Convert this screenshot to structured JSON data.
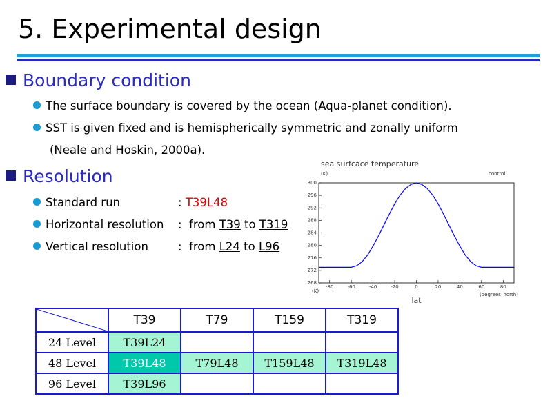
{
  "header": {
    "title": "5. Experimental design"
  },
  "boundary": {
    "heading": "Boundary condition",
    "items": [
      "The surface boundary is covered by the ocean (Aqua-planet condition).",
      "SST is given fixed and is hemispherically symmetric and zonally uniform"
    ],
    "continuation": "(Neale and Hoskin, 2000a)."
  },
  "resolution": {
    "heading": "Resolution",
    "items": [
      {
        "label": "Standard run",
        "parts": [
          {
            "text": ": "
          },
          {
            "text": "T39L48",
            "color": "#e00000"
          }
        ]
      },
      {
        "label": "Horizontal resolution",
        "parts": [
          {
            "text": ":  from "
          },
          {
            "text": "T39",
            "underline": true
          },
          {
            "text": " to "
          },
          {
            "text": "T319",
            "underline": true
          }
        ]
      },
      {
        "label": "Vertical resolution",
        "parts": [
          {
            "text": ":  from "
          },
          {
            "text": "L24",
            "underline": true
          },
          {
            "text": " to "
          },
          {
            "text": "L96",
            "underline": true
          }
        ]
      }
    ]
  },
  "chart_data": {
    "type": "line",
    "title": "sea surfcace temperature",
    "y_unit": "(K)",
    "x_unit_left": "(K)",
    "x_unit_right": "(degrees_north)",
    "xlabel": "lat",
    "annotation": "control",
    "x": [
      -90,
      -80,
      -70,
      -60,
      -55,
      -50,
      -45,
      -40,
      -35,
      -30,
      -25,
      -20,
      -15,
      -10,
      -5,
      0,
      5,
      10,
      15,
      20,
      25,
      30,
      35,
      40,
      45,
      50,
      55,
      60,
      70,
      80,
      90
    ],
    "series": [
      {
        "name": "control",
        "color": "#0000ff",
        "values": [
          273,
          273,
          273,
          273,
          273.5,
          274.8,
          276.9,
          279.8,
          283,
          286.5,
          290,
          293.3,
          296.1,
          298.2,
          299.5,
          300,
          299.5,
          298.2,
          296.1,
          293.3,
          290,
          286.5,
          283,
          279.8,
          276.9,
          274.8,
          273.5,
          273,
          273,
          273,
          273
        ]
      }
    ],
    "xlim": [
      -90,
      90
    ],
    "xticks": [
      -80,
      -60,
      -40,
      -20,
      0,
      20,
      40,
      60,
      80
    ],
    "ylim": [
      268,
      300
    ],
    "yticks": [
      268,
      272,
      276,
      280,
      284,
      288,
      292,
      296,
      300
    ]
  },
  "table": {
    "columns": [
      "T39",
      "T79",
      "T159",
      "T319"
    ],
    "rows": [
      {
        "label": "24 Level",
        "cells": [
          "T39L24",
          null,
          null,
          null
        ]
      },
      {
        "label": "48 Level",
        "cells": [
          "T39L48",
          "T79L48",
          "T159L48",
          "T319L48"
        ]
      },
      {
        "label": "96 Level",
        "cells": [
          "T39L96",
          null,
          null,
          null
        ]
      }
    ]
  }
}
